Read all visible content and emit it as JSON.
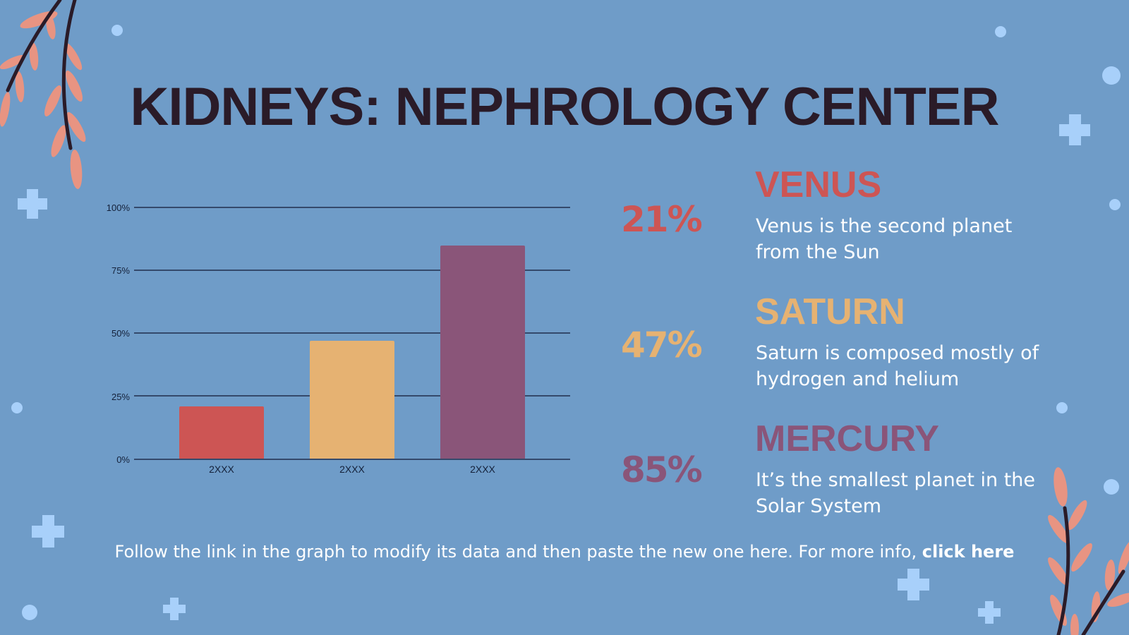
{
  "slide": {
    "title": "KIDNEYS: NEPHROLOGY CENTER",
    "background": "#6f9cc8"
  },
  "chart_data": {
    "type": "bar",
    "title": "",
    "xlabel": "",
    "ylabel": "",
    "categories": [
      "2XXX",
      "2XXX",
      "2XXX"
    ],
    "values": [
      21,
      47,
      85
    ],
    "colors": [
      "#cd5554",
      "#e6b272",
      "#8a5579"
    ],
    "y_ticks": [
      "0%",
      "25%",
      "50%",
      "75%",
      "100%"
    ],
    "ylim": [
      0,
      100
    ],
    "grid": true,
    "legend": "none"
  },
  "stats": [
    {
      "percent": "21%",
      "name": "VENUS",
      "description": "Venus is the second planet from the Sun",
      "color": "#cd5554"
    },
    {
      "percent": "47%",
      "name": "SATURN",
      "description": "Saturn is composed mostly of hydrogen and helium",
      "color": "#e6b272"
    },
    {
      "percent": "85%",
      "name": "MERCURY",
      "description": "It’s the smallest planet in the Solar System",
      "color": "#8a5579"
    }
  ],
  "footer": {
    "text": "Follow the link in the graph to modify its data and then paste the new one here. For more info,",
    "link": "click here"
  },
  "decor": {
    "leaf_color": "#e89482",
    "branch_color": "#2a1b28",
    "accent_light": "#a8d0fa"
  }
}
